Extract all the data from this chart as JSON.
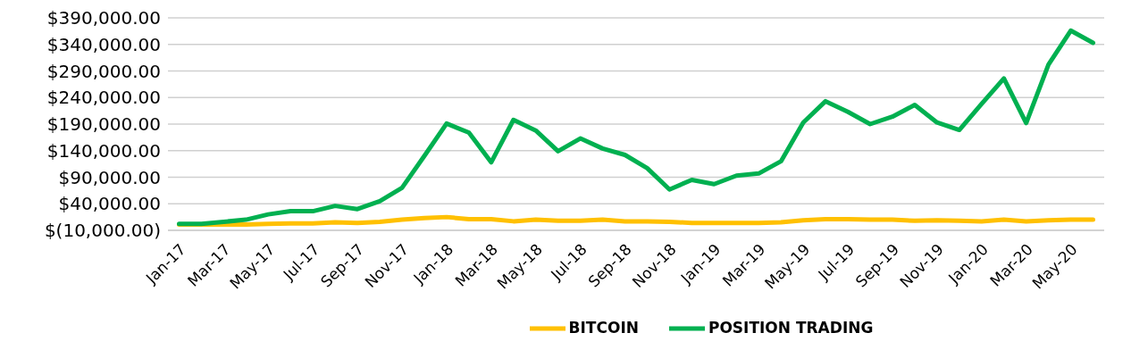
{
  "chart_data": {
    "type": "line",
    "categories": [
      "Jan-17",
      null,
      "Mar-17",
      null,
      "May-17",
      null,
      "Jul-17",
      null,
      "Sep-17",
      null,
      "Nov-17",
      null,
      "Jan-18",
      null,
      "Mar-18",
      null,
      "May-18",
      null,
      "Jul-18",
      null,
      "Sep-18",
      null,
      "Nov-18",
      null,
      "Jan-19",
      null,
      "Mar-19",
      null,
      "May-19",
      null,
      "Jul-19",
      null,
      "Sep-19",
      null,
      "Nov-19",
      null,
      "Jan-20",
      null,
      "Mar-20",
      null,
      "May-20",
      null
    ],
    "series": [
      {
        "name": "BITCOIN",
        "color": "#ffc000",
        "values": [
          1000,
          1000,
          1000,
          1000,
          2000,
          3000,
          3000,
          5000,
          4000,
          6000,
          10000,
          13000,
          15000,
          11000,
          11000,
          7000,
          10000,
          8000,
          8000,
          10000,
          7000,
          7000,
          6000,
          4000,
          4000,
          4000,
          4000,
          5000,
          9000,
          11000,
          11000,
          10000,
          10000,
          8000,
          9000,
          8000,
          7000,
          10000,
          7000,
          9000,
          10000,
          10000
        ]
      },
      {
        "name": "POSITION TRADING",
        "color": "#00b050",
        "values": [
          2000,
          2000,
          6000,
          10000,
          20000,
          26000,
          26000,
          36000,
          30000,
          45000,
          70000,
          130000,
          191000,
          174000,
          118000,
          198000,
          178000,
          139000,
          163000,
          144000,
          132000,
          107000,
          67000,
          85000,
          77000,
          93000,
          97000,
          120000,
          193000,
          233000,
          213000,
          190000,
          204000,
          226000,
          193000,
          179000,
          228000,
          276000,
          192000,
          302000,
          366000,
          343000
        ]
      }
    ],
    "ylim": [
      -10000,
      390000
    ],
    "yticks": [
      {
        "value": -10000,
        "label": "$(10,000.00)"
      },
      {
        "value": 40000,
        "label": "$40,000.00"
      },
      {
        "value": 90000,
        "label": "$90,000.00"
      },
      {
        "value": 140000,
        "label": "$140,000.00"
      },
      {
        "value": 190000,
        "label": "$190,000.00"
      },
      {
        "value": 240000,
        "label": "$240,000.00"
      },
      {
        "value": 290000,
        "label": "$290,000.00"
      },
      {
        "value": 340000,
        "label": "$340,000.00"
      },
      {
        "value": 390000,
        "label": "$390,000.00"
      }
    ],
    "grid": "y",
    "legend": "bottom",
    "marker": "none",
    "line_style": "solid"
  }
}
